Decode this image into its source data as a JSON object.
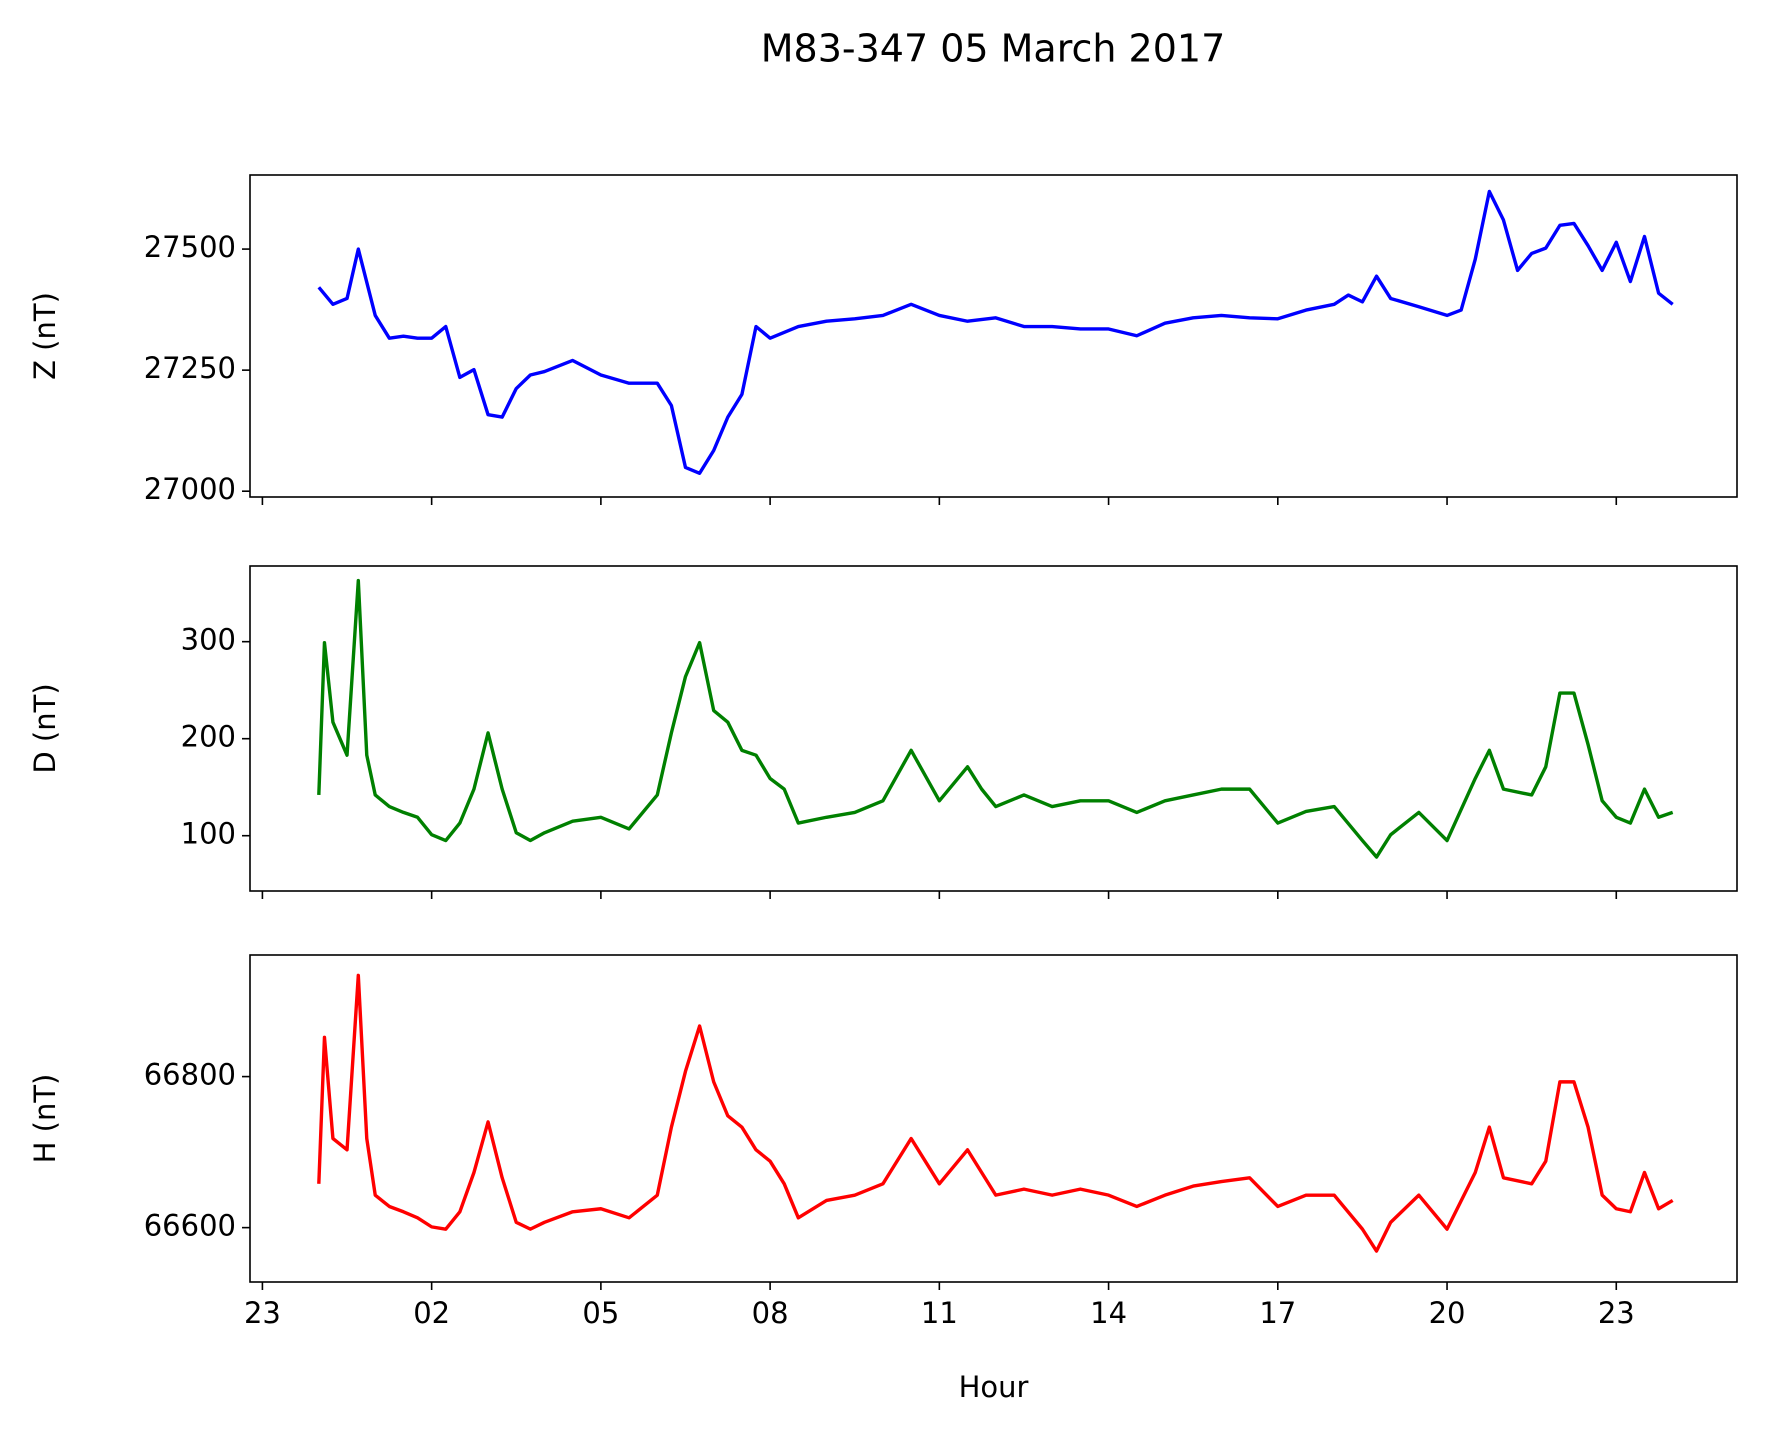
{
  "title": "M83-347 05 March 2017",
  "chart_data": [
    {
      "type": "line",
      "ylabel": "Z (nT)",
      "color": "#0000ff",
      "x": [
        0,
        0.25,
        0.5,
        0.7,
        1,
        1.25,
        1.5,
        1.75,
        2,
        2.25,
        2.5,
        2.75,
        3,
        3.25,
        3.5,
        3.75,
        4,
        4.5,
        5,
        5.5,
        6,
        6.25,
        6.5,
        6.75,
        7,
        7.25,
        7.5,
        7.75,
        8,
        8.5,
        9,
        9.5,
        10,
        10.5,
        11,
        11.5,
        12,
        12.5,
        13,
        13.5,
        14,
        14.5,
        15,
        15.5,
        16,
        16.5,
        17,
        17.5,
        18,
        18.25,
        18.5,
        18.75,
        19,
        19.5,
        20,
        20.25,
        20.5,
        20.75,
        21,
        21.25,
        21.5,
        21.75,
        22,
        22.25,
        22.5,
        22.75,
        23,
        23.25,
        23.5,
        23.75,
        24
      ],
      "values": [
        27421,
        27386,
        27398,
        27500,
        27363,
        27316,
        27320,
        27316,
        27316,
        27340,
        27235,
        27251,
        27158,
        27153,
        27212,
        27240,
        27247,
        27270,
        27240,
        27223,
        27223,
        27177,
        27049,
        27037,
        27084,
        27153,
        27200,
        27340,
        27316,
        27340,
        27351,
        27356,
        27363,
        27386,
        27363,
        27351,
        27358,
        27340,
        27340,
        27335,
        27335,
        27321,
        27347,
        27358,
        27363,
        27358,
        27356,
        27374,
        27386,
        27405,
        27391,
        27444,
        27398,
        27381,
        27363,
        27374,
        27479,
        27619,
        27560,
        27456,
        27491,
        27502,
        27549,
        27553,
        27507,
        27456,
        27514,
        27433,
        27526,
        27409,
        27386
      ],
      "ylim": [
        26988,
        27653
      ],
      "yticks": [
        27000,
        27250,
        27500
      ]
    },
    {
      "type": "line",
      "ylabel": "D (nT)",
      "color": "#008000",
      "x": [
        0,
        0.1,
        0.25,
        0.5,
        0.7,
        0.85,
        1,
        1.25,
        1.5,
        1.75,
        2,
        2.25,
        2.5,
        2.75,
        3,
        3.25,
        3.5,
        3.75,
        4,
        4.5,
        5,
        5.5,
        6,
        6.25,
        6.5,
        6.75,
        7,
        7.25,
        7.5,
        7.75,
        8,
        8.25,
        8.5,
        9,
        9.5,
        10,
        10.5,
        11,
        11.5,
        11.75,
        12,
        12.5,
        13,
        13.5,
        14,
        14.5,
        15,
        15.5,
        16,
        16.5,
        17,
        17.5,
        18,
        18.5,
        18.75,
        19,
        19.5,
        20,
        20.5,
        20.75,
        21,
        21.5,
        21.75,
        22,
        22.25,
        22.5,
        22.75,
        23,
        23.25,
        23.5,
        23.75,
        24
      ],
      "values": [
        142,
        299,
        217,
        183,
        363,
        183,
        142,
        130,
        124,
        119,
        101,
        95,
        113,
        148,
        206,
        148,
        103,
        95,
        103,
        115,
        119,
        107,
        142,
        206,
        264,
        299,
        229,
        217,
        188,
        183,
        159,
        148,
        113,
        119,
        124,
        136,
        188,
        136,
        171,
        148,
        130,
        142,
        130,
        136,
        136,
        124,
        136,
        142,
        148,
        148,
        113,
        125,
        130,
        95,
        78,
        101,
        124,
        95,
        159,
        188,
        148,
        142,
        171,
        247,
        247,
        194,
        136,
        119,
        113,
        148,
        119,
        124
      ],
      "ylim": [
        43,
        378
      ],
      "yticks": [
        100,
        200,
        300
      ]
    },
    {
      "type": "line",
      "ylabel": "H (nT)",
      "xlabel": "Hour",
      "color": "#ff0000",
      "x": [
        0,
        0.1,
        0.25,
        0.5,
        0.7,
        0.85,
        1,
        1.25,
        1.5,
        1.75,
        2,
        2.25,
        2.5,
        2.75,
        3,
        3.25,
        3.5,
        3.75,
        4,
        4.5,
        5,
        5.5,
        6,
        6.25,
        6.5,
        6.75,
        7,
        7.25,
        7.5,
        7.75,
        8,
        8.25,
        8.5,
        9,
        9.5,
        10,
        10.5,
        11,
        11.5,
        11.75,
        12,
        12.5,
        13,
        13.5,
        14,
        14.5,
        15,
        15.5,
        16,
        16.5,
        17,
        17.5,
        18,
        18.5,
        18.75,
        19,
        19.5,
        20,
        20.5,
        20.75,
        21,
        21.5,
        21.75,
        22,
        22.25,
        22.5,
        22.75,
        23,
        23.25,
        23.5,
        23.75,
        24
      ],
      "values": [
        66658,
        66852,
        66718,
        66703,
        66934,
        66718,
        66643,
        66628,
        66621,
        66613,
        66601,
        66598,
        66621,
        66673,
        66740,
        66666,
        66607,
        66598,
        66607,
        66621,
        66625,
        66613,
        66643,
        66733,
        66807,
        66867,
        66793,
        66748,
        66733,
        66703,
        66688,
        66658,
        66613,
        66636,
        66643,
        66658,
        66718,
        66658,
        66703,
        66673,
        66643,
        66651,
        66643,
        66651,
        66643,
        66628,
        66643,
        66655,
        66661,
        66666,
        66628,
        66643,
        66643,
        66598,
        66569,
        66607,
        66643,
        66598,
        66673,
        66733,
        66666,
        66658,
        66688,
        66793,
        66793,
        66733,
        66643,
        66625,
        66621,
        66673,
        66625,
        66636
      ],
      "ylim": [
        66528,
        66961
      ],
      "yticks": [
        66600,
        66800
      ],
      "xlim": [
        -1.22,
        25.14
      ],
      "xticks": [
        {
          "value": -1,
          "label": "23"
        },
        {
          "value": 2,
          "label": "02"
        },
        {
          "value": 5,
          "label": "05"
        },
        {
          "value": 8,
          "label": "08"
        },
        11,
        14,
        17,
        20,
        23
      ]
    }
  ]
}
